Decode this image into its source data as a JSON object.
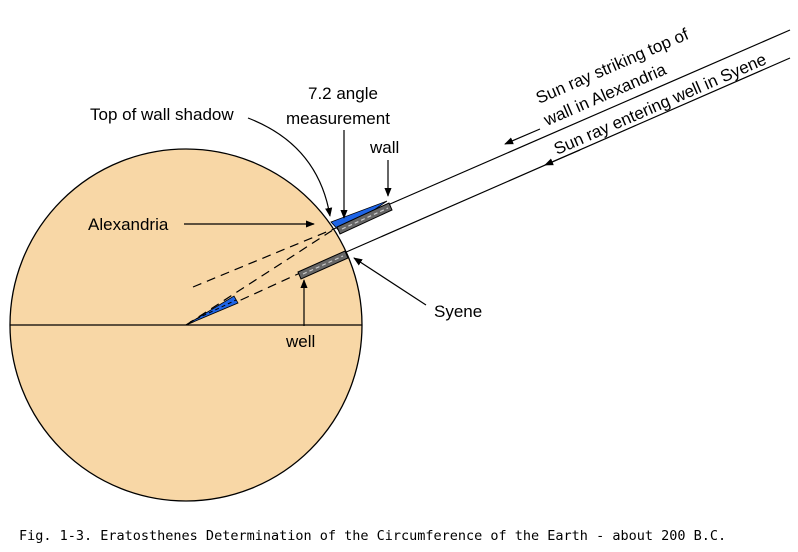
{
  "labels": {
    "top_of_wall_shadow": "Top of wall shadow",
    "angle_line1": "7.2 angle",
    "angle_line2": "measurement",
    "wall": "wall",
    "alexandria": "Alexandria",
    "syene": "Syene",
    "well": "well",
    "ray_upper_line1": "Sun ray striking top of",
    "ray_upper_line2": "wall in Alexandria",
    "ray_lower": "Sun ray entering well in Syene"
  },
  "caption": "Fig. 1-3.  Eratosthenes Determination of the Circumference of the Earth - about 200 B.C.",
  "colors": {
    "earth": "#F8D7A6",
    "angle_wedge": "#1E64E6",
    "wall_fill": "#666666",
    "line": "#000000"
  },
  "angle_degrees": 7.2
}
